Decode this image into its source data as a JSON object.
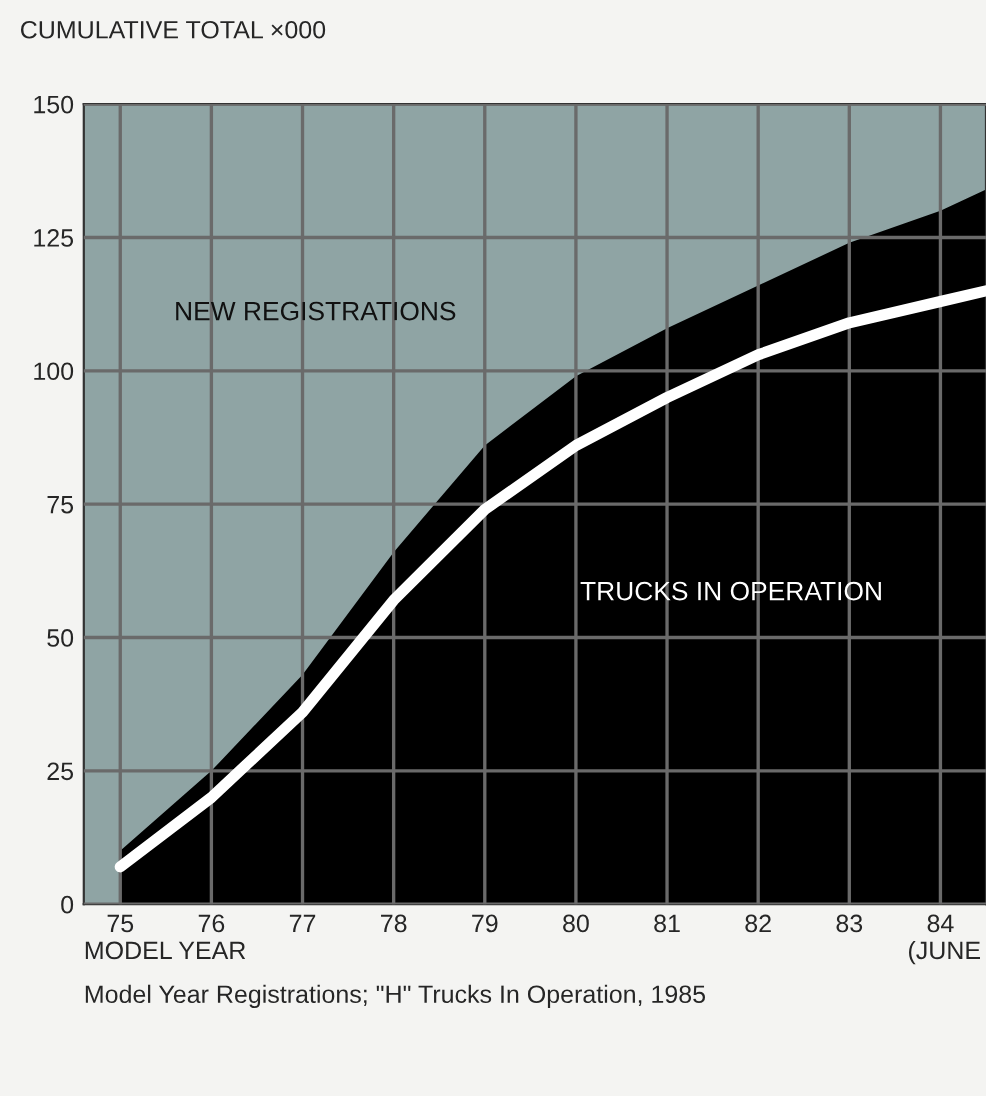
{
  "chart_data": {
    "type": "area",
    "ylabel": "CUMULATIVE TOTAL ×000",
    "xlabel": "MODEL YEAR",
    "x": [
      75,
      76,
      77,
      78,
      79,
      80,
      81,
      82,
      83,
      84,
      84.5
    ],
    "series": [
      {
        "name": "NEW REGISTRATIONS",
        "color": "#000000",
        "values": [
          10,
          25,
          43,
          66,
          86,
          99,
          108,
          116,
          124,
          130,
          134
        ]
      },
      {
        "name": "TRUCKS IN OPERATION",
        "type": "line",
        "color": "#ffffff",
        "values": [
          7,
          20,
          36,
          57,
          74,
          86,
          95,
          103,
          109,
          113,
          115
        ]
      }
    ],
    "xlim": [
      74.6,
      84.5
    ],
    "xticks": [
      75,
      76,
      77,
      78,
      79,
      80,
      81,
      82,
      83,
      84
    ],
    "ylim": [
      0,
      150
    ],
    "yticks": [
      0,
      25,
      50,
      75,
      100,
      125,
      150
    ],
    "grid": true,
    "legend": false,
    "annotations": [
      "(JUNE",
      "Model Year Registrations; \"H\" Trucks In Operation, 1985"
    ]
  }
}
